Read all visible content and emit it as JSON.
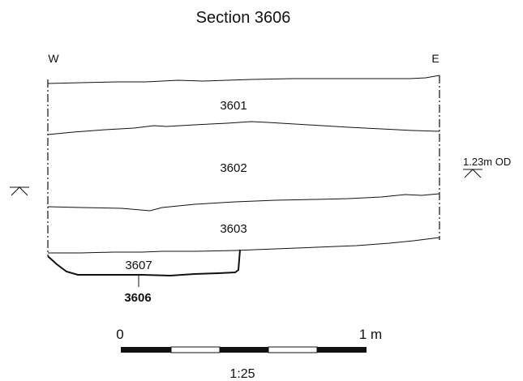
{
  "title": "Section 3606",
  "orientation": {
    "west": "W",
    "east": "E"
  },
  "layers": {
    "l3601": "3601",
    "l3602": "3602",
    "l3603": "3603",
    "l3607": "3607"
  },
  "cut_label": "3606",
  "datum": {
    "label": "1.23m OD",
    "symbol": "datum-marker-icon"
  },
  "scale_bar": {
    "start": "0",
    "end": "1 m",
    "ratio": "1:25"
  }
}
